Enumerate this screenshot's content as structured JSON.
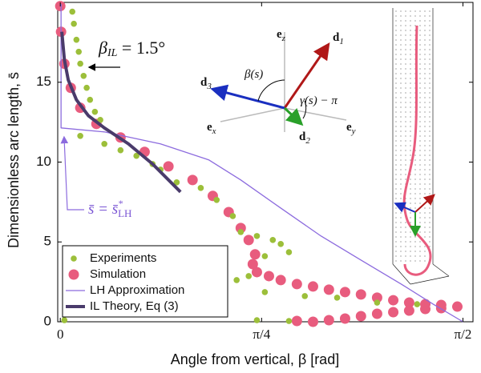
{
  "chart_data": {
    "type": "line",
    "x_label": "Angle from vertical, β [rad]",
    "y_label": "Dimensionless arc length, s̄",
    "xlim": [
      -0.01,
      1.61
    ],
    "ylim": [
      0,
      20
    ],
    "xticks": [
      0,
      {
        "value": 0.7854,
        "label": "π/4"
      },
      {
        "value": 1.5708,
        "label": "π/2"
      }
    ],
    "yticks": [
      0,
      5,
      10,
      15
    ],
    "legend": "lower left",
    "series": [
      {
        "name": "Experiments",
        "type": "scatter",
        "color": "#9cbf3a",
        "x": [
          0.047,
          0.053,
          0.063,
          0.072,
          0.078,
          0.091,
          0.103,
          0.116,
          0.135,
          0.156,
          0.078,
          0.172,
          0.235,
          0.297,
          0.36,
          0.391,
          0.454,
          0.548,
          0.61,
          0.673,
          0.704,
          0.767,
          0.829,
          0.86,
          0.892,
          0.798,
          0.735,
          0.688,
          0.798,
          0.954,
          1.08,
          1.236,
          1.392,
          0.767,
          0.892,
          0.016
        ],
        "values": [
          19.42,
          18.66,
          17.66,
          16.91,
          16.16,
          15.4,
          14.65,
          13.9,
          13.15,
          12.64,
          11.64,
          11.14,
          10.74,
          10.39,
          9.88,
          9.53,
          8.73,
          8.38,
          7.63,
          6.62,
          5.62,
          5.37,
          5.12,
          4.87,
          4.36,
          4.11,
          2.86,
          2.61,
          1.86,
          1.61,
          1.51,
          1.2,
          1.1,
          0.1,
          0.05,
          0.1
        ]
      },
      {
        "name": "Simulation",
        "type": "scatter",
        "color": "#e85c7e",
        "x": [
          0.0,
          0.003,
          0.016,
          0.041,
          0.078,
          0.141,
          0.235,
          0.329,
          0.422,
          0.516,
          0.595,
          0.657,
          0.704,
          0.735,
          0.76,
          0.751,
          0.767,
          0.814,
          0.86,
          0.923,
          0.986,
          1.048,
          1.111,
          1.173,
          1.236,
          1.299,
          1.361,
          1.424,
          1.486,
          1.549,
          0.923,
          0.986,
          1.048,
          1.111,
          1.173,
          1.236,
          1.299,
          1.361,
          1.424,
          1.486
        ],
        "values": [
          19.77,
          18.16,
          16.16,
          14.65,
          13.4,
          12.39,
          11.54,
          10.64,
          9.73,
          8.88,
          7.88,
          6.87,
          5.87,
          5.12,
          4.22,
          3.61,
          3.11,
          2.86,
          2.61,
          2.36,
          2.21,
          2.01,
          1.86,
          1.71,
          1.51,
          1.35,
          1.2,
          1.1,
          1.05,
          0.95,
          0.05,
          0.0,
          0.1,
          0.2,
          0.35,
          0.5,
          0.6,
          0.7,
          0.8,
          0.85
        ]
      },
      {
        "name": "LH Approximation",
        "type": "line",
        "color": "#8c6bde",
        "width": 1.3,
        "x": [
          0.003,
          0.003,
          0.172,
          0.391,
          0.579,
          0.704,
          0.86,
          1.017,
          1.173,
          1.33,
          1.455,
          1.571
        ],
        "values": [
          19.9,
          12.14,
          11.89,
          11.14,
          10.14,
          8.88,
          7.12,
          5.37,
          3.86,
          2.36,
          1.1,
          0
        ]
      },
      {
        "name": "IL Theory, Eq (3)",
        "type": "line",
        "color": "#4a3b6b",
        "width": 4,
        "x": [
          0.006,
          0.016,
          0.031,
          0.063,
          0.11,
          0.172,
          0.266,
          0.36,
          0.469
        ],
        "values": [
          18.16,
          16.41,
          15.15,
          13.9,
          12.9,
          12.14,
          11.14,
          9.88,
          8.13
        ]
      }
    ],
    "annotations": [
      {
        "main": "β",
        "sub": "IL",
        "rest": " = 1.5°"
      },
      {
        "main": "s̄ = s̄",
        "sup": "*",
        "sub": "LH"
      }
    ],
    "inset_labels": [
      {
        "text": "e",
        "sub": "z"
      },
      {
        "text": "d",
        "sub": "1"
      },
      {
        "text": "d",
        "sub": "3"
      },
      {
        "text": "β(s)"
      },
      {
        "text": "γ(s) − π"
      },
      {
        "text": "e",
        "sub": "x"
      },
      {
        "text": "e",
        "sub": "y"
      },
      {
        "text": "d",
        "sub": "2"
      }
    ]
  }
}
